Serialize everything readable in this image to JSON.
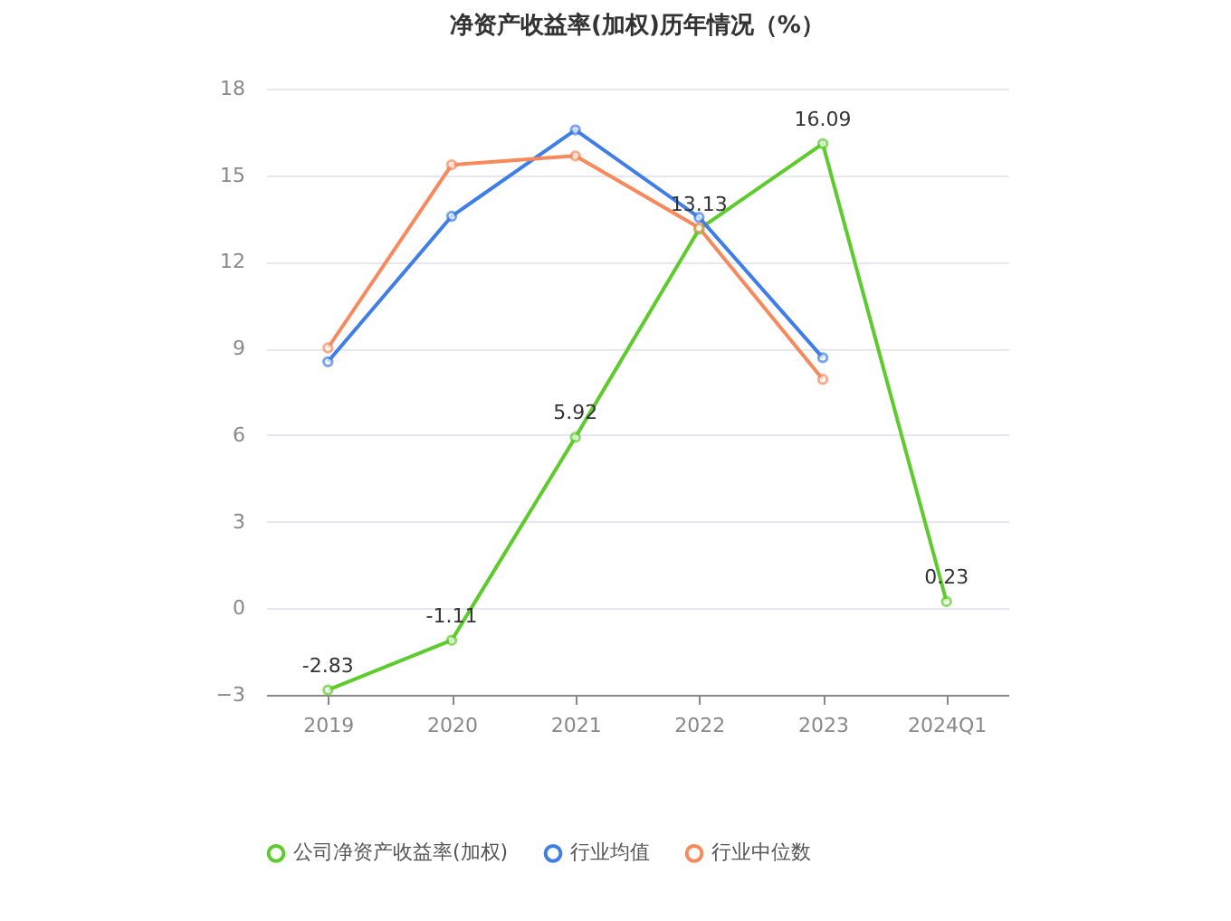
{
  "chart_data": {
    "type": "line",
    "title": "净资产收益率(加权)历年情况（%）",
    "categories": [
      "2019",
      "2020",
      "2021",
      "2022",
      "2023",
      "2024Q1"
    ],
    "series": [
      {
        "name": "公司净资产收益率(加权)",
        "color": "#5ccb2b",
        "values": [
          -2.83,
          -1.11,
          5.92,
          13.13,
          16.09,
          0.23
        ],
        "value_labels": [
          "-2.83",
          "-1.11",
          "5.92",
          "13.13",
          "16.09",
          "0.23"
        ]
      },
      {
        "name": "行业均值",
        "color": "#3f7de8",
        "values": [
          8.54,
          13.58,
          16.57,
          13.54,
          8.68,
          null
        ]
      },
      {
        "name": "行业中位数",
        "color": "#f7895c",
        "values": [
          9.02,
          15.36,
          15.67,
          13.18,
          7.93,
          null
        ]
      }
    ],
    "ylim": [
      -3,
      18
    ],
    "yticks": [
      -3,
      0,
      3,
      6,
      9,
      12,
      15,
      18
    ],
    "grid": "y",
    "legend": "bottom",
    "marker": "circle",
    "line_style": "solid"
  }
}
